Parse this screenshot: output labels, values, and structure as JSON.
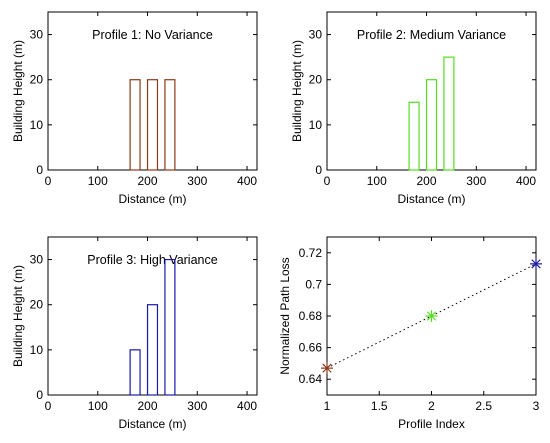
{
  "chart_data": [
    {
      "type": "bar",
      "title": "Profile 1: No Variance",
      "xlabel": "Distance (m)",
      "ylabel": "Building Height (m)",
      "xlim": [
        0,
        420
      ],
      "ylim": [
        0,
        35
      ],
      "xticks": [
        0,
        100,
        200,
        300,
        400
      ],
      "yticks": [
        0,
        10,
        20,
        30
      ],
      "color": "#8b3a1a",
      "buildings": [
        {
          "x_start": 165,
          "x_end": 185,
          "height": 20
        },
        {
          "x_start": 200,
          "x_end": 220,
          "height": 20
        },
        {
          "x_start": 235,
          "x_end": 255,
          "height": 20
        }
      ]
    },
    {
      "type": "bar",
      "title": "Profile 2: Medium Variance",
      "xlabel": "Distance (m)",
      "ylabel": "Building Height (m)",
      "xlim": [
        0,
        420
      ],
      "ylim": [
        0,
        35
      ],
      "xticks": [
        0,
        100,
        200,
        300,
        400
      ],
      "yticks": [
        0,
        10,
        20,
        30
      ],
      "color": "#55dd22",
      "buildings": [
        {
          "x_start": 165,
          "x_end": 185,
          "height": 15
        },
        {
          "x_start": 200,
          "x_end": 220,
          "height": 20
        },
        {
          "x_start": 235,
          "x_end": 255,
          "height": 25
        }
      ]
    },
    {
      "type": "bar",
      "title": "Profile 3: High Variance",
      "xlabel": "Distance (m)",
      "ylabel": "Building Height (m)",
      "xlim": [
        0,
        420
      ],
      "ylim": [
        0,
        35
      ],
      "xticks": [
        0,
        100,
        200,
        300,
        400
      ],
      "yticks": [
        0,
        10,
        20,
        30
      ],
      "color": "#1a1aa8",
      "buildings": [
        {
          "x_start": 165,
          "x_end": 185,
          "height": 10
        },
        {
          "x_start": 200,
          "x_end": 220,
          "height": 20
        },
        {
          "x_start": 235,
          "x_end": 255,
          "height": 30
        }
      ]
    },
    {
      "type": "scatter",
      "title": "",
      "xlabel": "Profile Index",
      "ylabel": "Normalized Path Loss",
      "xlim": [
        1,
        3
      ],
      "ylim": [
        0.63,
        0.73
      ],
      "xticks": [
        "1",
        "1.5",
        "2",
        "2.5",
        "3"
      ],
      "yticks": [
        "0.64",
        "0.66",
        "0.68",
        "0.7",
        "0.72"
      ],
      "line_style": "dotted",
      "grid": false,
      "points": [
        {
          "x": 1,
          "y": 0.647,
          "color": "#8b3a1a"
        },
        {
          "x": 2,
          "y": 0.68,
          "color": "#55dd22"
        },
        {
          "x": 3,
          "y": 0.713,
          "color": "#1a1aa8"
        }
      ]
    }
  ]
}
